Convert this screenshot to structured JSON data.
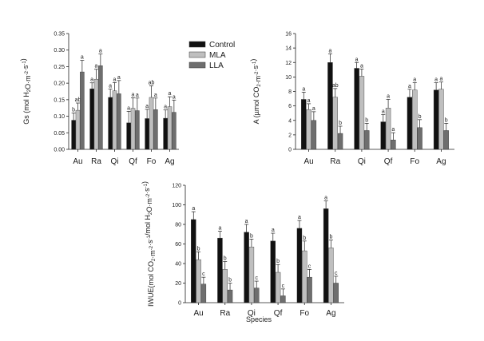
{
  "figure_xlabel": "Species",
  "legend": {
    "entries": [
      {
        "label": "Control",
        "color": "#111111"
      },
      {
        "label": "MLA",
        "color": "#bfbfbf"
      },
      {
        "label": "LLA",
        "color": "#6e6e6e"
      }
    ]
  },
  "chart_data": [
    {
      "type": "bar",
      "title": "",
      "ylabel_parts": [
        "Gs (mol H",
        "2",
        "O·m",
        "-2",
        "·s",
        "-1",
        ")"
      ],
      "categories": [
        "Au",
        "Ra",
        "Qi",
        "Qf",
        "Fo",
        "Ag"
      ],
      "ylim": [
        0,
        0.35
      ],
      "yticks": [
        0.0,
        0.05,
        0.1,
        0.15,
        0.2,
        0.25,
        0.3,
        0.35
      ],
      "ytick_labels": [
        "0.00",
        "0.05",
        "0.10",
        "0.15",
        "0.20",
        "0.25",
        "0.30",
        "0.35"
      ],
      "series": [
        {
          "name": "Control",
          "values": [
            0.088,
            0.183,
            0.157,
            0.08,
            0.093,
            0.094
          ],
          "errors": [
            0.022,
            0.018,
            0.025,
            0.035,
            0.028,
            0.025
          ],
          "letters": [
            "b",
            "a",
            "a",
            "a",
            "a",
            "a"
          ]
        },
        {
          "name": "MLA",
          "values": [
            0.118,
            0.212,
            0.177,
            0.124,
            0.157,
            0.129
          ],
          "errors": [
            0.022,
            0.03,
            0.025,
            0.032,
            0.035,
            0.03
          ],
          "letters": [
            "ab",
            "a",
            "a",
            "a",
            "ab",
            "a"
          ]
        },
        {
          "name": "LLA",
          "values": [
            0.234,
            0.253,
            0.168,
            0.117,
            0.12,
            0.112
          ],
          "errors": [
            0.035,
            0.035,
            0.04,
            0.038,
            0.035,
            0.037
          ],
          "letters": [
            "a",
            "a",
            "a",
            "a",
            "a",
            "a"
          ]
        }
      ]
    },
    {
      "type": "bar",
      "title": "",
      "ylabel_parts": [
        "A (µmol CO",
        "2",
        "·m",
        "-2",
        "·s",
        "-1",
        ")"
      ],
      "categories": [
        "Au",
        "Ra",
        "Qi",
        "Qf",
        "Fo",
        "Ag"
      ],
      "ylim": [
        0,
        16
      ],
      "yticks": [
        0,
        2,
        4,
        6,
        8,
        10,
        12,
        14,
        16
      ],
      "ytick_labels": [
        "0",
        "2",
        "4",
        "6",
        "8",
        "10",
        "12",
        "14",
        "16"
      ],
      "series": [
        {
          "name": "Control",
          "values": [
            6.9,
            12.0,
            11.2,
            3.8,
            7.2,
            8.2
          ],
          "errors": [
            1.0,
            1.2,
            0.8,
            1.0,
            1.1,
            1.0
          ],
          "letters": [
            "a",
            "a",
            "a",
            "a",
            "a",
            "a"
          ]
        },
        {
          "name": "MLA",
          "values": [
            5.5,
            7.2,
            10.1,
            5.7,
            8.2,
            8.3
          ],
          "errors": [
            0.8,
            1.2,
            1.0,
            1.2,
            1.0,
            1.0
          ],
          "letters": [
            "a",
            "ab",
            "a",
            "a",
            "a",
            "a"
          ]
        },
        {
          "name": "LLA",
          "values": [
            4.0,
            2.2,
            2.6,
            1.3,
            3.0,
            2.6
          ],
          "errors": [
            1.2,
            1.0,
            1.0,
            1.0,
            1.1,
            1.0
          ],
          "letters": [
            "a",
            "b",
            "b",
            "a",
            "b",
            "b"
          ]
        }
      ]
    },
    {
      "type": "bar",
      "title": "",
      "ylabel_parts": [
        "IWUE(mol CO",
        "2",
        "·m",
        "-2",
        "·s",
        "-1",
        "/mol H",
        "2",
        "O·m",
        "-2",
        "·s",
        "-1",
        ")"
      ],
      "categories": [
        "Au",
        "Ra",
        "Qi",
        "Qf",
        "Fo",
        "Ag"
      ],
      "ylim": [
        0,
        120
      ],
      "yticks": [
        0,
        20,
        40,
        60,
        80,
        100,
        120
      ],
      "ytick_labels": [
        "0",
        "20",
        "40",
        "60",
        "80",
        "100",
        "120"
      ],
      "series": [
        {
          "name": "Control",
          "values": [
            85,
            66,
            72,
            63,
            76,
            96
          ],
          "errors": [
            8,
            7,
            8,
            8,
            8,
            8
          ],
          "letters": [
            "a",
            "a",
            "a",
            "a",
            "a",
            "a"
          ]
        },
        {
          "name": "MLA",
          "values": [
            44,
            34,
            57,
            31,
            53,
            56
          ],
          "errors": [
            8,
            8,
            8,
            8,
            10,
            8
          ],
          "letters": [
            "b",
            "b",
            "b",
            "b",
            "b",
            "b"
          ]
        },
        {
          "name": "LLA",
          "values": [
            19,
            13,
            15,
            7,
            26,
            20
          ],
          "errors": [
            7,
            7,
            7,
            7,
            8,
            7
          ],
          "letters": [
            "c",
            "b",
            "c",
            "c",
            "c",
            "c"
          ]
        }
      ]
    }
  ]
}
